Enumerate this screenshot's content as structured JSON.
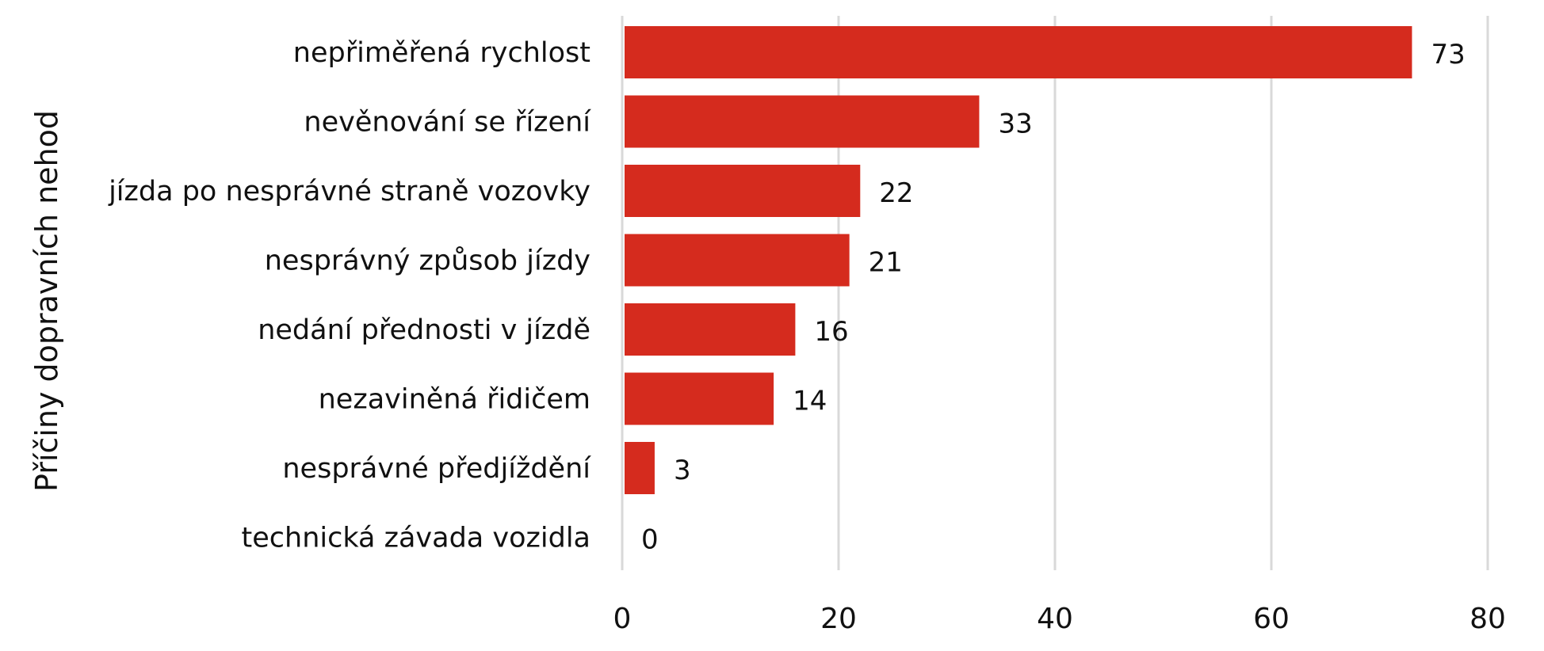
{
  "chart_data": {
    "type": "bar",
    "orientation": "horizontal",
    "title": "",
    "xlabel": "",
    "ylabel": "Příčiny dopravních nehod",
    "categories": [
      "nepřiměřená rychlost",
      "nevěnování se řízení",
      "jízda po nesprávné straně vozovky",
      "nesprávný způsob jízdy",
      "nedání přednosti v jízdě",
      "nezaviněná řidičem",
      "nesprávné předjíždění",
      "technická závada vozidla"
    ],
    "values": [
      73,
      33,
      22,
      21,
      16,
      14,
      3,
      0
    ],
    "xlim": [
      0,
      80
    ],
    "xticks": [
      0,
      20,
      40,
      60,
      80
    ],
    "grid": true,
    "legend": "none",
    "bar_color": "#d52b1e"
  }
}
